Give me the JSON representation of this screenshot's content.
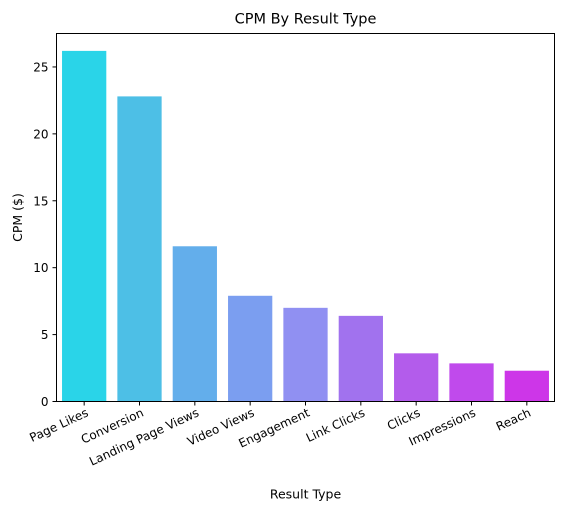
{
  "chart_data": {
    "type": "bar",
    "title": "CPM By Result Type",
    "xlabel": "Result Type",
    "ylabel": "CPM ($)",
    "categories": [
      "Page Likes",
      "Conversion",
      "Landing Page Views",
      "Video Views",
      "Engagement",
      "Link Clicks",
      "Clicks",
      "Impressions",
      "Reach"
    ],
    "values": [
      26.2,
      22.8,
      11.6,
      7.9,
      7.0,
      6.4,
      3.6,
      2.85,
      2.3
    ],
    "colors": [
      "#2ad4e8",
      "#4dbfe6",
      "#63aeeb",
      "#7b9ef0",
      "#9090f2",
      "#a172ee",
      "#b35ceb",
      "#c04aec",
      "#cd36e8"
    ],
    "ylim": [
      0,
      27.5
    ],
    "yticks": [
      0,
      5,
      10,
      15,
      20,
      25
    ],
    "grid": false,
    "legend": "none"
  }
}
